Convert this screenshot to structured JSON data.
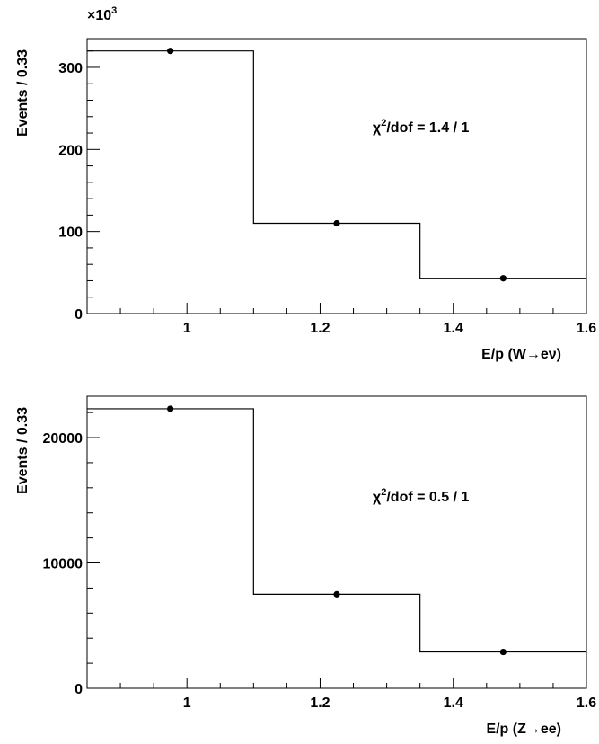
{
  "chart_data": [
    {
      "type": "step",
      "xlabel": "E/p (W→eν)",
      "ylabel": "Events / 0.33",
      "multiplier": "×10",
      "multiplier_exp": "3",
      "annotation": "χ",
      "annotation_sup": "2",
      "annotation_rest": "/dof = 1.4 / 1",
      "xlim": [
        0.85,
        1.6
      ],
      "ylim": [
        0,
        335
      ],
      "xticks": [
        1,
        1.2,
        1.4,
        1.6
      ],
      "xtick_labels": [
        "1",
        "1.2",
        "1.4",
        "1.6"
      ],
      "yticks": [
        0,
        100,
        200,
        300
      ],
      "ytick_labels": [
        "0",
        "100",
        "200",
        "300"
      ],
      "bins": [
        [
          0.85,
          1.1
        ],
        [
          1.1,
          1.35
        ],
        [
          1.35,
          1.6
        ]
      ],
      "values": [
        320,
        110,
        43
      ],
      "points": [
        {
          "x": 0.975,
          "y": 320
        },
        {
          "x": 1.225,
          "y": 110
        },
        {
          "x": 1.475,
          "y": 43
        }
      ]
    },
    {
      "type": "step",
      "xlabel": "E/p (Z→ee)",
      "ylabel": "Events / 0.33",
      "multiplier": "",
      "multiplier_exp": "",
      "annotation": "χ",
      "annotation_sup": "2",
      "annotation_rest": "/dof = 0.5 / 1",
      "xlim": [
        0.85,
        1.6
      ],
      "ylim": [
        0,
        23300
      ],
      "xticks": [
        1,
        1.2,
        1.4,
        1.6
      ],
      "xtick_labels": [
        "1",
        "1.2",
        "1.4",
        "1.6"
      ],
      "yticks": [
        0,
        10000,
        20000
      ],
      "ytick_labels": [
        "0",
        "10000",
        "20000"
      ],
      "bins": [
        [
          0.85,
          1.1
        ],
        [
          1.1,
          1.35
        ],
        [
          1.35,
          1.6
        ]
      ],
      "values": [
        22300,
        7500,
        2900
      ],
      "points": [
        {
          "x": 0.975,
          "y": 22300
        },
        {
          "x": 1.225,
          "y": 7500
        },
        {
          "x": 1.475,
          "y": 2900
        }
      ]
    }
  ]
}
